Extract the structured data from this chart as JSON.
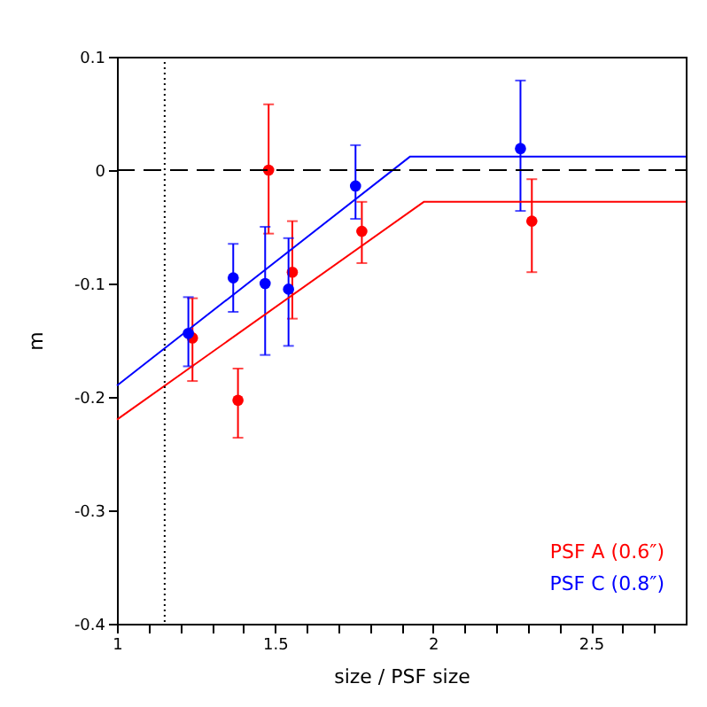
{
  "chart_data": {
    "type": "scatter",
    "xlabel": "size / PSF size",
    "ylabel": "m",
    "xlim": [
      1,
      2.8
    ],
    "ylim": [
      -0.4,
      0.1
    ],
    "xticks": [
      1,
      {
        "value": 1.1,
        "label": null
      },
      {
        "value": 1.2,
        "label": null
      },
      {
        "value": 1.3,
        "label": null
      },
      {
        "value": 1.4,
        "label": null
      },
      1.5,
      {
        "value": 1.6,
        "label": null
      },
      {
        "value": 1.7,
        "label": null
      },
      {
        "value": 1.8,
        "label": null
      },
      {
        "value": 1.9,
        "label": null
      },
      2,
      {
        "value": 2.1,
        "label": null
      },
      {
        "value": 2.2,
        "label": null
      },
      {
        "value": 2.3,
        "label": null
      },
      {
        "value": 2.4,
        "label": null
      },
      2.5,
      {
        "value": 2.6,
        "label": null
      },
      {
        "value": 2.7,
        "label": null
      }
    ],
    "yticks": [
      -0.4,
      -0.3,
      -0.2,
      -0.1,
      0,
      0.1
    ],
    "grid": false,
    "legend": "bottom right",
    "series": [
      {
        "name": "PSF A (0.6″)",
        "color": "#ff0000",
        "x": [
          1.239,
          1.383,
          1.48,
          1.555,
          1.775,
          2.313
        ],
        "values": [
          -0.148,
          -0.203,
          0,
          -0.09,
          -0.054,
          -0.045
        ],
        "marker": "circle",
        "errors": [
          [
            -0.186,
            -0.113
          ],
          [
            -0.236,
            -0.175
          ],
          [
            -0.056,
            0.058
          ],
          [
            -0.131,
            -0.045
          ],
          [
            -0.082,
            -0.028
          ],
          [
            -0.09,
            -0.008
          ]
        ]
      },
      {
        "name": "PSF C (0.8″)",
        "color": "#0000ff",
        "x": [
          1.226,
          1.368,
          1.469,
          1.543,
          1.755,
          2.277
        ],
        "values": [
          -0.144,
          -0.095,
          -0.1,
          -0.105,
          -0.014,
          0.019
        ],
        "marker": "circle",
        "errors": [
          [
            -0.173,
            -0.112
          ],
          [
            -0.125,
            -0.065
          ],
          [
            -0.163,
            -0.05
          ],
          [
            -0.155,
            -0.06
          ],
          [
            -0.043,
            0.022
          ],
          [
            -0.036,
            0.079
          ]
        ]
      },
      {
        "type": "line",
        "color": "#ff0000",
        "x": [
          1,
          1.971,
          2.8
        ],
        "values": [
          -0.22,
          -0.028,
          -0.028
        ]
      },
      {
        "type": "line",
        "color": "#0000ff",
        "x": [
          1,
          1.928,
          2.8
        ],
        "values": [
          -0.19,
          0.012,
          0.012
        ]
      }
    ],
    "ref_lines": [
      {
        "axis": "y",
        "value": 0,
        "color": "#000000",
        "line_style": "dashed"
      },
      {
        "axis": "x",
        "value": 1.151,
        "color": "#000000",
        "line_style": "dotted"
      }
    ]
  }
}
